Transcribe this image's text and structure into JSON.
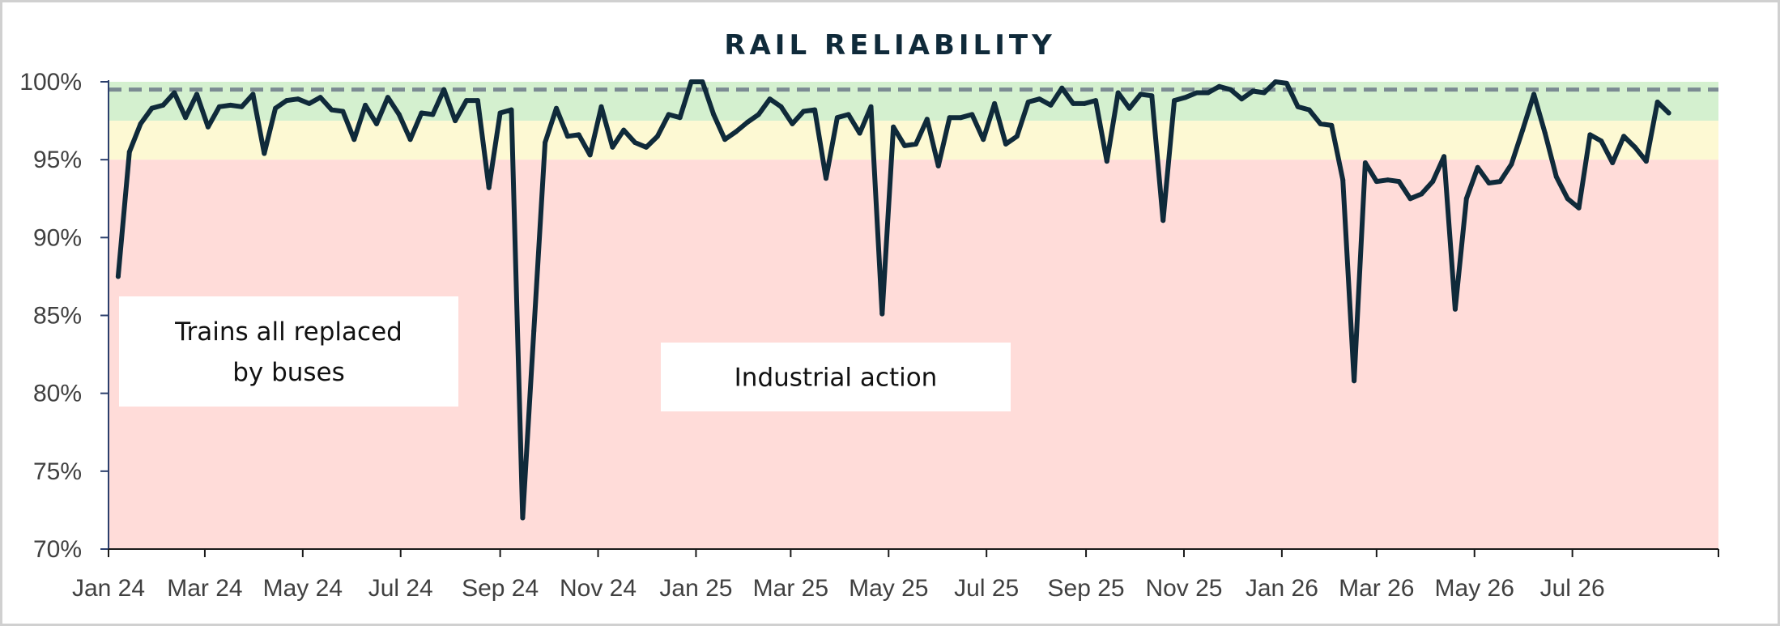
{
  "chart_data": {
    "type": "line",
    "title": "RAIL RELIABILITY",
    "xlabel": "",
    "ylabel": "",
    "ylim": [
      70,
      100
    ],
    "xlim": [
      "2024-01-01",
      "2026-09-30"
    ],
    "y_tick_labels": [
      "70%",
      "75%",
      "80%",
      "85%",
      "90%",
      "95%",
      "100%"
    ],
    "y_tick_values": [
      70,
      75,
      80,
      85,
      90,
      95,
      100
    ],
    "x_tick_labels": [
      "Jan 24",
      "Mar 24",
      "May 24",
      "Jul 24",
      "Sep 24",
      "Nov 24",
      "Jan 25",
      "Mar 25",
      "May 25",
      "Jul 25",
      "Sep 25",
      "Nov 25",
      "Jan 26",
      "Mar 26",
      "May 26",
      "Jul 26"
    ],
    "x_tick_dates": [
      "2024-01-01",
      "2024-03-01",
      "2024-05-01",
      "2024-07-01",
      "2024-09-01",
      "2024-11-01",
      "2025-01-01",
      "2025-03-01",
      "2025-05-01",
      "2025-07-01",
      "2025-09-01",
      "2025-11-01",
      "2026-01-01",
      "2026-03-01",
      "2026-05-01",
      "2026-07-01"
    ],
    "bands": [
      {
        "from": 97.5,
        "to": 100,
        "color": "#d4f0cf"
      },
      {
        "from": 95,
        "to": 97.5,
        "color": "#fdf9d3"
      },
      {
        "from": 70,
        "to": 95,
        "color": "#ffdcd9"
      }
    ],
    "target_line": {
      "value": 99.5,
      "color": "#7b8a92",
      "style": "dashed"
    },
    "grid": false,
    "legend": "none",
    "series": [
      {
        "color": "#0f2a3a",
        "points": [
          [
            "2024-01-07",
            87.5
          ],
          [
            "2024-01-14",
            95.5
          ],
          [
            "2024-01-21",
            97.3
          ],
          [
            "2024-01-28",
            98.3
          ],
          [
            "2024-02-04",
            98.5
          ],
          [
            "2024-02-11",
            99.3
          ],
          [
            "2024-02-18",
            97.7
          ],
          [
            "2024-02-25",
            99.2
          ],
          [
            "2024-03-03",
            97.1
          ],
          [
            "2024-03-10",
            98.4
          ],
          [
            "2024-03-17",
            98.5
          ],
          [
            "2024-03-24",
            98.4
          ],
          [
            "2024-03-31",
            99.2
          ],
          [
            "2024-04-07",
            95.4
          ],
          [
            "2024-04-14",
            98.3
          ],
          [
            "2024-04-21",
            98.8
          ],
          [
            "2024-04-28",
            98.9
          ],
          [
            "2024-05-05",
            98.6
          ],
          [
            "2024-05-12",
            99.0
          ],
          [
            "2024-05-19",
            98.2
          ],
          [
            "2024-05-26",
            98.1
          ],
          [
            "2024-06-02",
            96.3
          ],
          [
            "2024-06-09",
            98.5
          ],
          [
            "2024-06-16",
            97.3
          ],
          [
            "2024-06-23",
            99.0
          ],
          [
            "2024-06-30",
            97.9
          ],
          [
            "2024-07-07",
            96.3
          ],
          [
            "2024-07-14",
            98.0
          ],
          [
            "2024-07-21",
            97.9
          ],
          [
            "2024-07-28",
            99.5
          ],
          [
            "2024-08-04",
            97.5
          ],
          [
            "2024-08-11",
            98.8
          ],
          [
            "2024-08-18",
            98.8
          ],
          [
            "2024-08-25",
            93.2
          ],
          [
            "2024-09-01",
            98.0
          ],
          [
            "2024-09-08",
            98.2
          ],
          [
            "2024-09-15",
            72.0
          ],
          [
            "2024-09-22",
            84.0
          ],
          [
            "2024-09-29",
            96.1
          ],
          [
            "2024-10-06",
            98.3
          ],
          [
            "2024-10-13",
            96.5
          ],
          [
            "2024-10-20",
            96.6
          ],
          [
            "2024-10-27",
            95.3
          ],
          [
            "2024-11-03",
            98.4
          ],
          [
            "2024-11-10",
            95.8
          ],
          [
            "2024-11-17",
            96.9
          ],
          [
            "2024-11-24",
            96.1
          ],
          [
            "2024-12-01",
            95.8
          ],
          [
            "2024-12-08",
            96.5
          ],
          [
            "2024-12-15",
            97.9
          ],
          [
            "2024-12-22",
            97.7
          ],
          [
            "2024-12-29",
            100.0
          ],
          [
            "2025-01-05",
            100.0
          ],
          [
            "2025-01-12",
            97.9
          ],
          [
            "2025-01-19",
            96.3
          ],
          [
            "2025-01-26",
            96.8
          ],
          [
            "2025-02-02",
            97.4
          ],
          [
            "2025-02-09",
            97.9
          ],
          [
            "2025-02-16",
            98.9
          ],
          [
            "2025-02-23",
            98.4
          ],
          [
            "2025-03-02",
            97.3
          ],
          [
            "2025-03-09",
            98.1
          ],
          [
            "2025-03-16",
            98.2
          ],
          [
            "2025-03-23",
            93.8
          ],
          [
            "2025-03-30",
            97.7
          ],
          [
            "2025-04-06",
            97.9
          ],
          [
            "2025-04-13",
            96.7
          ],
          [
            "2025-04-20",
            98.4
          ],
          [
            "2025-04-27",
            85.1
          ],
          [
            "2025-05-04",
            97.1
          ],
          [
            "2025-05-11",
            95.9
          ],
          [
            "2025-05-18",
            96.0
          ],
          [
            "2025-05-25",
            97.6
          ],
          [
            "2025-06-01",
            94.6
          ],
          [
            "2025-06-08",
            97.7
          ],
          [
            "2025-06-15",
            97.7
          ],
          [
            "2025-06-22",
            97.9
          ],
          [
            "2025-06-29",
            96.3
          ],
          [
            "2025-07-06",
            98.6
          ],
          [
            "2025-07-13",
            96.0
          ],
          [
            "2025-07-20",
            96.5
          ],
          [
            "2025-07-27",
            98.7
          ],
          [
            "2025-08-03",
            98.9
          ],
          [
            "2025-08-10",
            98.5
          ],
          [
            "2025-08-17",
            99.6
          ],
          [
            "2025-08-24",
            98.6
          ],
          [
            "2025-08-31",
            98.6
          ],
          [
            "2025-09-07",
            98.8
          ],
          [
            "2025-09-14",
            94.9
          ],
          [
            "2025-09-21",
            99.3
          ],
          [
            "2025-09-28",
            98.3
          ],
          [
            "2025-10-05",
            99.2
          ],
          [
            "2025-10-12",
            99.1
          ],
          [
            "2025-10-19",
            91.1
          ],
          [
            "2025-10-26",
            98.8
          ],
          [
            "2025-11-02",
            99.0
          ],
          [
            "2025-11-09",
            99.3
          ],
          [
            "2025-11-16",
            99.3
          ],
          [
            "2025-11-23",
            99.7
          ],
          [
            "2025-11-30",
            99.5
          ],
          [
            "2025-12-07",
            98.9
          ],
          [
            "2025-12-14",
            99.4
          ],
          [
            "2025-12-21",
            99.3
          ],
          [
            "2025-12-28",
            100.0
          ],
          [
            "2026-01-04",
            99.9
          ],
          [
            "2026-01-11",
            98.4
          ],
          [
            "2026-01-18",
            98.2
          ],
          [
            "2026-01-25",
            97.3
          ],
          [
            "2026-02-01",
            97.2
          ],
          [
            "2026-02-08",
            93.7
          ],
          [
            "2026-02-15",
            80.8
          ],
          [
            "2026-02-22",
            94.8
          ],
          [
            "2026-03-01",
            93.6
          ],
          [
            "2026-03-08",
            93.7
          ],
          [
            "2026-03-15",
            93.6
          ],
          [
            "2026-03-22",
            92.5
          ],
          [
            "2026-03-29",
            92.8
          ],
          [
            "2026-04-05",
            93.6
          ],
          [
            "2026-04-12",
            95.2
          ],
          [
            "2026-04-19",
            85.4
          ],
          [
            "2026-04-26",
            92.5
          ],
          [
            "2026-05-03",
            94.5
          ],
          [
            "2026-05-10",
            93.5
          ],
          [
            "2026-05-17",
            93.6
          ],
          [
            "2026-05-24",
            94.7
          ],
          [
            "2026-05-31",
            96.9
          ],
          [
            "2026-06-07",
            99.2
          ],
          [
            "2026-06-14",
            96.7
          ],
          [
            "2026-06-21",
            93.9
          ],
          [
            "2026-06-28",
            92.5
          ],
          [
            "2026-07-05",
            91.9
          ],
          [
            "2026-07-12",
            96.6
          ],
          [
            "2026-07-19",
            96.2
          ],
          [
            "2026-07-26",
            94.8
          ],
          [
            "2026-08-02",
            96.5
          ],
          [
            "2026-08-09",
            95.8
          ],
          [
            "2026-08-16",
            94.9
          ],
          [
            "2026-08-23",
            98.7
          ],
          [
            "2026-08-30",
            98.0
          ]
        ]
      }
    ],
    "annotations": [
      {
        "text_lines": [
          "Trains all replaced",
          "by buses"
        ]
      },
      {
        "text_lines": [
          "Industrial action"
        ]
      }
    ]
  }
}
